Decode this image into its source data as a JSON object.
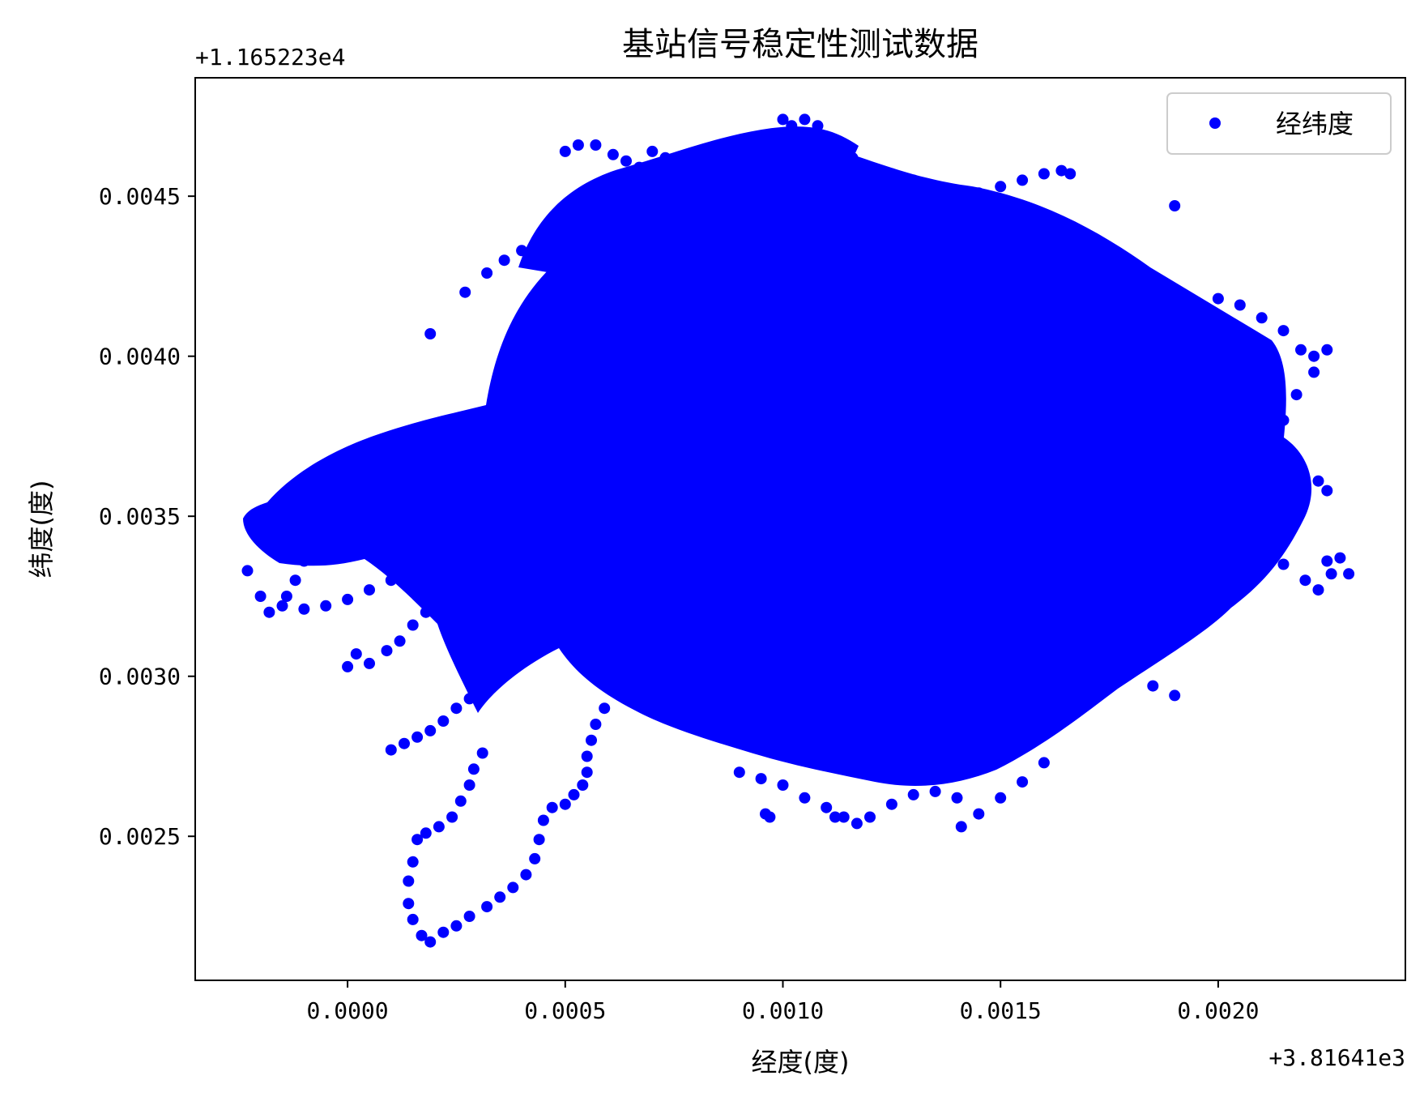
{
  "chart_data": {
    "type": "scatter",
    "title": "基站信号稳定性测试数据",
    "xlabel": "经度(度)",
    "ylabel": "纬度(度)",
    "x_offset_label": "+3.81641e3",
    "y_offset_label": "+1.165223e4",
    "xlim": [
      -0.00035,
      0.00243
    ],
    "ylim": [
      0.00205,
      0.00487
    ],
    "x_ticks": [
      {
        "value": 0.0,
        "label": "0.0000"
      },
      {
        "value": 0.0005,
        "label": "0.0005"
      },
      {
        "value": 0.001,
        "label": "0.0010"
      },
      {
        "value": 0.0015,
        "label": "0.0015"
      },
      {
        "value": 0.002,
        "label": "0.0020"
      }
    ],
    "y_ticks": [
      {
        "value": 0.0025,
        "label": "0.0025"
      },
      {
        "value": 0.003,
        "label": "0.0030"
      },
      {
        "value": 0.0035,
        "label": "0.0035"
      },
      {
        "value": 0.004,
        "label": "0.0040"
      },
      {
        "value": 0.0045,
        "label": "0.0045"
      }
    ],
    "grid": false,
    "legend": {
      "position": "top-right",
      "entries": [
        "经纬度"
      ]
    },
    "series": [
      {
        "name": "经纬度",
        "color": "#0000ff",
        "marker": "circle",
        "points_note_omitted": true,
        "points": [
          [
            -0.00023,
            0.00333
          ],
          [
            -0.0002,
            0.00325
          ],
          [
            -0.00018,
            0.0032
          ],
          [
            -0.00015,
            0.00322
          ],
          [
            -0.00012,
            0.0033
          ],
          [
            -0.0001,
            0.00336
          ],
          [
            -7e-05,
            0.0034
          ],
          [
            -5e-05,
            0.00345
          ],
          [
            -2e-05,
            0.00348
          ],
          [
            0.0,
            0.0035
          ],
          [
            -0.00018,
            0.00347
          ],
          [
            -0.00015,
            0.00349
          ],
          [
            -0.00011,
            0.00352
          ],
          [
            -8e-05,
            0.00355
          ],
          [
            -5e-05,
            0.00358
          ],
          [
            -3e-05,
            0.00362
          ],
          [
            0.0,
            0.00366
          ],
          [
            3e-05,
            0.00369
          ],
          [
            6e-05,
            0.00372
          ],
          [
            0.0001,
            0.00375
          ],
          [
            -0.00014,
            0.00325
          ],
          [
            -0.0001,
            0.00321
          ],
          [
            -5e-05,
            0.00322
          ],
          [
            0.0,
            0.00324
          ],
          [
            5e-05,
            0.00327
          ],
          [
            0.0001,
            0.0033
          ],
          [
            0.00014,
            0.00335
          ],
          [
            0.00018,
            0.00338
          ],
          [
            0.0,
            0.00303
          ],
          [
            2e-05,
            0.00307
          ],
          [
            5e-05,
            0.00304
          ],
          [
            9e-05,
            0.00308
          ],
          [
            0.00012,
            0.00311
          ],
          [
            0.00015,
            0.00316
          ],
          [
            0.00018,
            0.0032
          ],
          [
            0.0002,
            0.00325
          ],
          [
            0.0001,
            0.00277
          ],
          [
            0.00013,
            0.00279
          ],
          [
            0.00016,
            0.00281
          ],
          [
            0.00019,
            0.00283
          ],
          [
            0.00022,
            0.00286
          ],
          [
            0.00025,
            0.0029
          ],
          [
            0.00028,
            0.00293
          ],
          [
            0.00031,
            0.00297
          ],
          [
            0.00016,
            0.00249
          ],
          [
            0.00015,
            0.00242
          ],
          [
            0.00014,
            0.00236
          ],
          [
            0.00014,
            0.00229
          ],
          [
            0.00015,
            0.00224
          ],
          [
            0.00017,
            0.00219
          ],
          [
            0.00019,
            0.00217
          ],
          [
            0.00022,
            0.0022
          ],
          [
            0.00025,
            0.00222
          ],
          [
            0.00028,
            0.00225
          ],
          [
            0.00032,
            0.00228
          ],
          [
            0.00035,
            0.00231
          ],
          [
            0.00038,
            0.00234
          ],
          [
            0.00041,
            0.00238
          ],
          [
            0.00043,
            0.00243
          ],
          [
            0.00044,
            0.00249
          ],
          [
            0.00045,
            0.00255
          ],
          [
            0.00047,
            0.00259
          ],
          [
            0.0005,
            0.0026
          ],
          [
            0.00052,
            0.00263
          ],
          [
            0.00054,
            0.00266
          ],
          [
            0.00055,
            0.0027
          ],
          [
            0.00055,
            0.00275
          ],
          [
            0.00056,
            0.0028
          ],
          [
            0.00057,
            0.00285
          ],
          [
            0.00059,
            0.0029
          ],
          [
            0.00062,
            0.00295
          ],
          [
            0.00018,
            0.00251
          ],
          [
            0.00021,
            0.00253
          ],
          [
            0.00024,
            0.00256
          ],
          [
            0.00026,
            0.00261
          ],
          [
            0.00028,
            0.00266
          ],
          [
            0.00029,
            0.00271
          ],
          [
            0.00031,
            0.00276
          ],
          [
            0.00019,
            0.00407
          ],
          [
            0.00027,
            0.0042
          ],
          [
            0.00032,
            0.00426
          ],
          [
            0.00036,
            0.0043
          ],
          [
            0.0004,
            0.00433
          ],
          [
            0.00044,
            0.00436
          ],
          [
            0.00047,
            0.0044
          ],
          [
            0.0005,
            0.00445
          ],
          [
            0.0005,
            0.00464
          ],
          [
            0.00053,
            0.00466
          ],
          [
            0.00057,
            0.00466
          ],
          [
            0.00061,
            0.00463
          ],
          [
            0.00064,
            0.00461
          ],
          [
            0.00067,
            0.00459
          ],
          [
            0.0007,
            0.00464
          ],
          [
            0.00073,
            0.00462
          ],
          [
            0.00077,
            0.0046
          ],
          [
            0.0008,
            0.00463
          ],
          [
            0.00084,
            0.00462
          ],
          [
            0.00088,
            0.00462
          ],
          [
            0.00093,
            0.00465
          ],
          [
            0.00097,
            0.00469
          ],
          [
            0.001,
            0.00474
          ],
          [
            0.00102,
            0.00472
          ],
          [
            0.00105,
            0.00474
          ],
          [
            0.00108,
            0.00472
          ],
          [
            0.0011,
            0.00468
          ],
          [
            0.00113,
            0.00465
          ],
          [
            0.00116,
            0.00462
          ],
          [
            0.0012,
            0.00458
          ],
          [
            0.00125,
            0.00457
          ],
          [
            0.0013,
            0.00455
          ],
          [
            0.00135,
            0.00452
          ],
          [
            0.0014,
            0.0045
          ],
          [
            0.00145,
            0.00451
          ],
          [
            0.0015,
            0.00453
          ],
          [
            0.00155,
            0.00455
          ],
          [
            0.0016,
            0.00457
          ],
          [
            0.00164,
            0.00458
          ],
          [
            0.00166,
            0.00457
          ],
          [
            0.0019,
            0.00447
          ],
          [
            0.0016,
            0.00423
          ],
          [
            0.0017,
            0.0042
          ],
          [
            0.0018,
            0.00418
          ],
          [
            0.0019,
            0.0042
          ],
          [
            0.002,
            0.00418
          ],
          [
            0.00205,
            0.00416
          ],
          [
            0.0021,
            0.00412
          ],
          [
            0.00215,
            0.00408
          ],
          [
            0.00219,
            0.00402
          ],
          [
            0.00222,
            0.004
          ],
          [
            0.00225,
            0.00402
          ],
          [
            0.00222,
            0.00395
          ],
          [
            0.00218,
            0.00388
          ],
          [
            0.00215,
            0.0038
          ],
          [
            0.00212,
            0.00372
          ],
          [
            0.00212,
            0.00365
          ],
          [
            0.00218,
            0.0036
          ],
          [
            0.00223,
            0.00361
          ],
          [
            0.00225,
            0.00358
          ],
          [
            0.0021,
            0.0034
          ],
          [
            0.00215,
            0.00335
          ],
          [
            0.0022,
            0.0033
          ],
          [
            0.00223,
            0.00327
          ],
          [
            0.00226,
            0.00332
          ],
          [
            0.0023,
            0.00332
          ],
          [
            0.00228,
            0.00337
          ],
          [
            0.00225,
            0.00336
          ],
          [
            0.0019,
            0.00328
          ],
          [
            0.00185,
            0.00322
          ],
          [
            0.0018,
            0.00318
          ],
          [
            0.00175,
            0.00314
          ],
          [
            0.00168,
            0.00311
          ],
          [
            0.0016,
            0.00308
          ],
          [
            0.00152,
            0.00306
          ],
          [
            0.00145,
            0.00303
          ],
          [
            0.0019,
            0.00294
          ],
          [
            0.00185,
            0.00297
          ],
          [
            0.00178,
            0.003
          ],
          [
            0.0017,
            0.00302
          ],
          [
            0.0009,
            0.0027
          ],
          [
            0.00095,
            0.00268
          ],
          [
            0.001,
            0.00266
          ],
          [
            0.00105,
            0.00262
          ],
          [
            0.0011,
            0.00259
          ],
          [
            0.00114,
            0.00256
          ],
          [
            0.00117,
            0.00254
          ],
          [
            0.0012,
            0.00256
          ],
          [
            0.00125,
            0.0026
          ],
          [
            0.0013,
            0.00263
          ],
          [
            0.00135,
            0.00264
          ],
          [
            0.0014,
            0.00262
          ],
          [
            0.00141,
            0.00253
          ],
          [
            0.00145,
            0.00257
          ],
          [
            0.0015,
            0.00262
          ],
          [
            0.00155,
            0.00267
          ],
          [
            0.0016,
            0.00273
          ],
          [
            0.00096,
            0.00257
          ],
          [
            0.00097,
            0.00256
          ],
          [
            0.00112,
            0.00256
          ]
        ]
      }
    ]
  }
}
